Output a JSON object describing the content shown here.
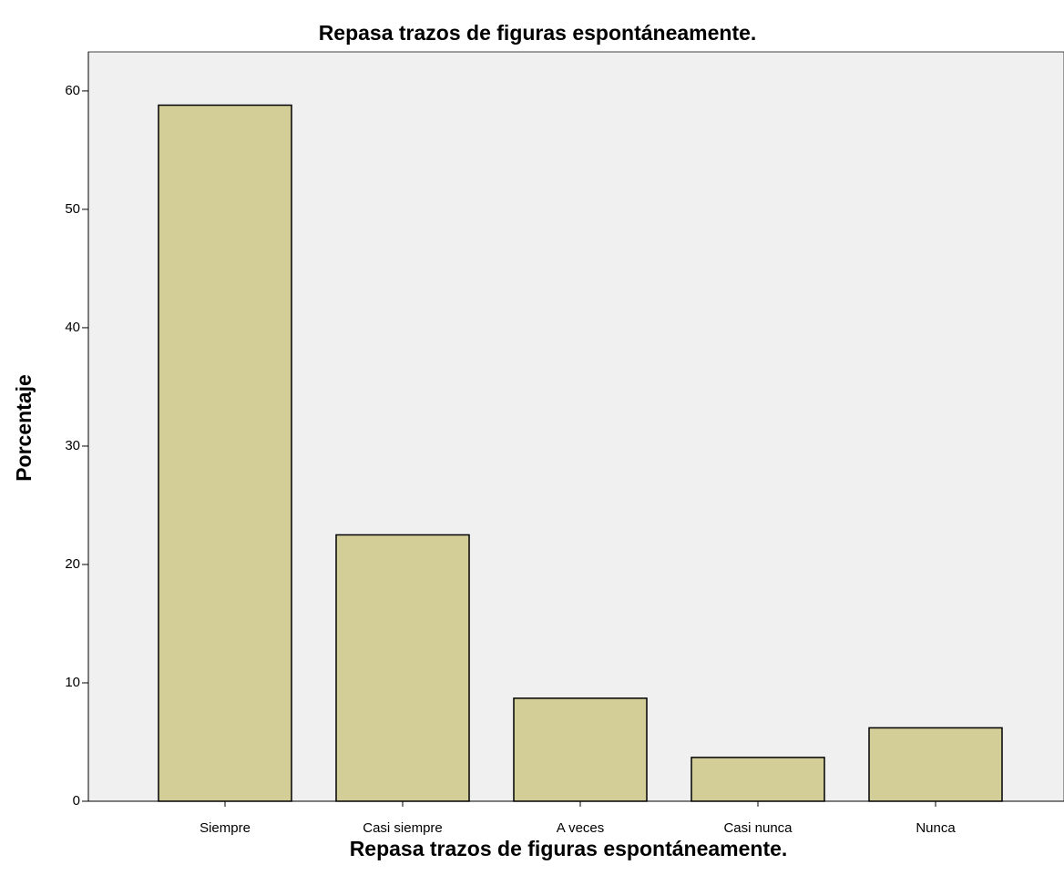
{
  "chart_data": {
    "type": "bar",
    "title": "Repasa trazos de figuras espontáneamente.",
    "x_label": "Repasa trazos de figuras espontáneamente.",
    "y_label": "Porcentaje",
    "categories": [
      "Siempre",
      "Casi siempre",
      "A veces",
      "Casi nunca",
      "Nunca"
    ],
    "values": [
      58.8,
      22.5,
      8.7,
      3.7,
      6.2
    ],
    "color": "#d3ce97",
    "ylim": [
      0,
      63.3
    ],
    "yticks": [
      0,
      10,
      20,
      30,
      40,
      50,
      60
    ]
  }
}
